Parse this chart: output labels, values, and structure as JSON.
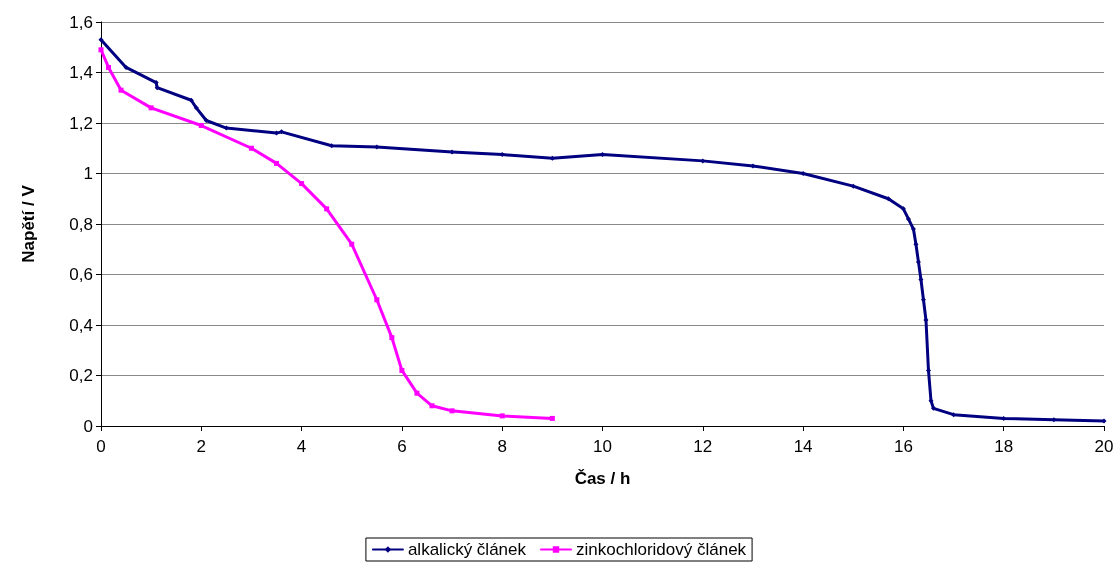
{
  "chart_data": {
    "type": "line",
    "xlabel": "Čas / h",
    "ylabel": "Napětí / V",
    "xlim": [
      0,
      20
    ],
    "xticks": [
      0,
      2,
      4,
      6,
      8,
      10,
      12,
      14,
      16,
      18,
      20
    ],
    "ylim": [
      0,
      1.6
    ],
    "yticks": [
      0,
      {
        "value": 0.2,
        "label": "0,2"
      },
      {
        "value": 0.4,
        "label": "0,4"
      },
      {
        "value": 0.6,
        "label": "0,6"
      },
      {
        "value": 0.8,
        "label": "0,8"
      },
      1,
      {
        "value": 1.2,
        "label": "1,2"
      },
      {
        "value": 1.4,
        "label": "1,4"
      },
      {
        "value": 1.6,
        "label": "1,6"
      }
    ],
    "grid": "y",
    "legend": "bottom",
    "line_style": "solid",
    "series": [
      {
        "name": "alkalický článek",
        "color": "#000080",
        "marker": "diamond",
        "x": [
          0,
          0.5,
          1.1,
          1.12,
          1.8,
          1.9,
          2.1,
          2.5,
          3.5,
          3.6,
          4.6,
          5.5,
          7,
          8,
          9,
          10,
          12,
          13,
          14,
          15,
          15.7,
          16,
          16.1,
          16.2,
          16.25,
          16.3,
          16.35,
          16.4,
          16.45,
          16.5,
          16.55,
          16.6,
          17,
          18,
          19,
          20
        ],
        "values": [
          1.53,
          1.42,
          1.36,
          1.34,
          1.29,
          1.26,
          1.21,
          1.18,
          1.16,
          1.165,
          1.11,
          1.105,
          1.085,
          1.075,
          1.06,
          1.075,
          1.05,
          1.03,
          1.0,
          0.95,
          0.9,
          0.86,
          0.82,
          0.78,
          0.72,
          0.65,
          0.58,
          0.5,
          0.42,
          0.22,
          0.1,
          0.07,
          0.045,
          0.03,
          0.025,
          0.02
        ]
      },
      {
        "name": "zinkochloridový článek",
        "color": "#ff00ff",
        "marker": "square",
        "x": [
          0,
          0.15,
          0.4,
          1,
          2,
          3,
          3.5,
          4,
          4.5,
          5,
          5.5,
          5.8,
          6,
          6.3,
          6.6,
          7,
          8,
          9
        ],
        "values": [
          1.49,
          1.42,
          1.33,
          1.26,
          1.19,
          1.1,
          1.04,
          0.96,
          0.86,
          0.72,
          0.5,
          0.35,
          0.22,
          0.13,
          0.08,
          0.06,
          0.04,
          0.03
        ]
      }
    ]
  }
}
